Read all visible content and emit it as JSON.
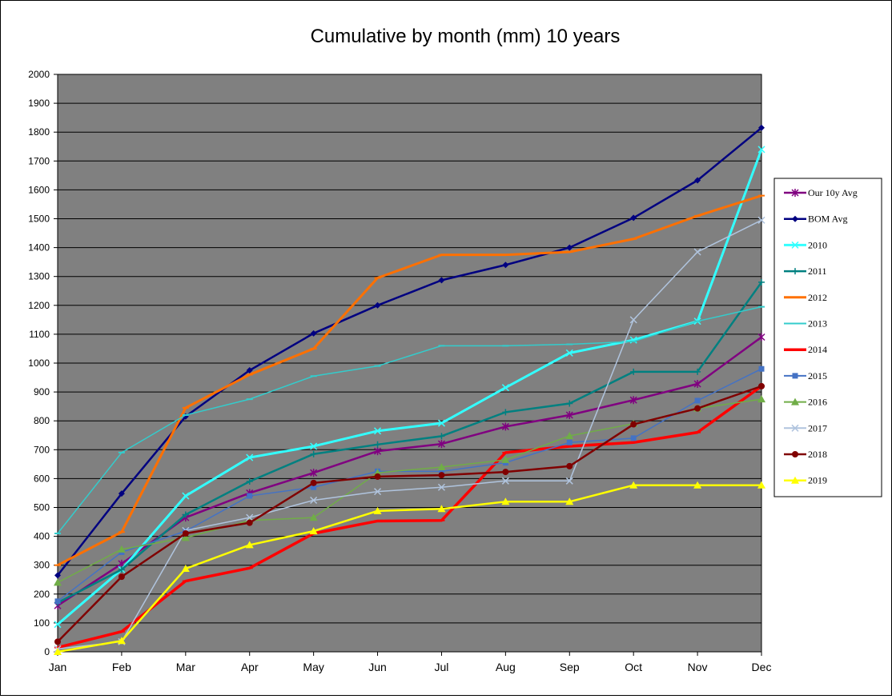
{
  "chart_data": {
    "type": "line",
    "title": "Cumulative by month (mm) 10 years",
    "xlabel": "",
    "ylabel": "",
    "categories": [
      "Jan",
      "Feb",
      "Mar",
      "Apr",
      "May",
      "Jun",
      "Jul",
      "Aug",
      "Sep",
      "Oct",
      "Nov",
      "Dec"
    ],
    "ylim": [
      0,
      2000
    ],
    "yticks": [
      0,
      100,
      200,
      300,
      400,
      500,
      600,
      700,
      800,
      900,
      1000,
      1100,
      1200,
      1300,
      1400,
      1500,
      1600,
      1700,
      1800,
      1900,
      2000
    ],
    "grid": "horizontal",
    "legend_position": "right",
    "plot_background": "#808080",
    "series": [
      {
        "name": "Our 10y Avg",
        "color": "#800080",
        "width": 2.5,
        "marker": "star",
        "values": [
          160,
          305,
          465,
          550,
          620,
          695,
          720,
          780,
          820,
          872,
          928,
          1090
        ]
      },
      {
        "name": "BOM Avg",
        "color": "#000080",
        "width": 2.5,
        "marker": "diamond",
        "values": [
          265,
          548,
          815,
          975,
          1103,
          1200,
          1287,
          1340,
          1400,
          1503,
          1633,
          1815
        ]
      },
      {
        "name": "2010",
        "color": "#33FFFF",
        "width": 3,
        "marker": "x",
        "values": [
          95,
          285,
          540,
          673,
          712,
          765,
          792,
          915,
          1035,
          1080,
          1145,
          1740
        ]
      },
      {
        "name": "2011",
        "color": "#008080",
        "width": 2.5,
        "marker": "plus",
        "values": [
          170,
          285,
          475,
          590,
          685,
          718,
          747,
          830,
          860,
          970,
          970,
          1280
        ]
      },
      {
        "name": "2012",
        "color": "#FF7000",
        "width": 3,
        "marker": "dash",
        "values": [
          300,
          415,
          845,
          960,
          1050,
          1295,
          1375,
          1375,
          1385,
          1430,
          1510,
          1580
        ]
      },
      {
        "name": "2013",
        "color": "#33CCCC",
        "width": 1.5,
        "marker": "dash",
        "values": [
          410,
          690,
          820,
          875,
          955,
          990,
          1060,
          1060,
          1065,
          1075,
          1145,
          1195
        ]
      },
      {
        "name": "2014",
        "color": "#FF0000",
        "width": 3.5,
        "marker": "dash",
        "values": [
          15,
          70,
          245,
          290,
          410,
          453,
          455,
          690,
          712,
          725,
          760,
          920
        ]
      },
      {
        "name": "2015",
        "color": "#4472C4",
        "width": 1.5,
        "marker": "square",
        "values": [
          175,
          345,
          418,
          540,
          570,
          625,
          625,
          655,
          725,
          740,
          870,
          980
        ]
      },
      {
        "name": "2016",
        "color": "#70AD47",
        "width": 1.5,
        "marker": "triangle",
        "values": [
          240,
          355,
          395,
          455,
          465,
          620,
          640,
          665,
          748,
          790,
          843,
          875
        ]
      },
      {
        "name": "2017",
        "color": "#B0C4DE",
        "width": 1.5,
        "marker": "x",
        "values": [
          10,
          35,
          420,
          465,
          525,
          555,
          570,
          592,
          592,
          1150,
          1385,
          1495
        ]
      },
      {
        "name": "2018",
        "color": "#800000",
        "width": 2.5,
        "marker": "circle",
        "values": [
          35,
          260,
          410,
          447,
          585,
          607,
          612,
          623,
          643,
          788,
          843,
          920
        ]
      },
      {
        "name": "2019",
        "color": "#FFFF00",
        "width": 2.5,
        "marker": "triangle",
        "values": [
          0,
          38,
          288,
          370,
          418,
          488,
          495,
          520,
          520,
          577,
          577,
          577
        ]
      }
    ]
  }
}
